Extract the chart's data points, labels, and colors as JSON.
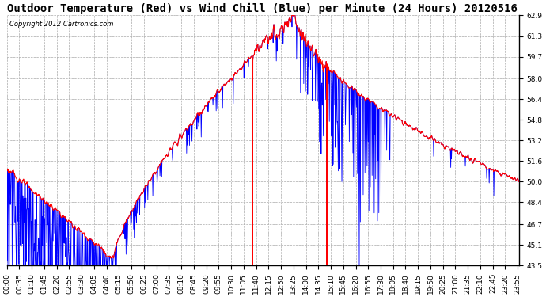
{
  "title": "Outdoor Temperature (Red) vs Wind Chill (Blue) per Minute (24 Hours) 20120516",
  "copyright_text": "Copyright 2012 Cartronics.com",
  "yticks": [
    43.5,
    45.1,
    46.7,
    48.4,
    50.0,
    51.6,
    53.2,
    54.8,
    56.4,
    58.0,
    59.7,
    61.3,
    62.9
  ],
  "ymin": 43.5,
  "ymax": 62.9,
  "background_color": "#ffffff",
  "plot_bg_color": "#ffffff",
  "grid_color": "#aaaaaa",
  "red_color": "#ff0000",
  "blue_color": "#0000ff",
  "title_fontsize": 10,
  "tick_fontsize": 6.5,
  "xtick_labels": [
    "00:00",
    "00:35",
    "01:10",
    "01:45",
    "02:20",
    "02:55",
    "03:30",
    "04:05",
    "04:40",
    "05:15",
    "05:50",
    "06:25",
    "07:00",
    "07:35",
    "08:10",
    "08:45",
    "09:20",
    "09:55",
    "10:30",
    "11:05",
    "11:40",
    "12:15",
    "12:50",
    "13:25",
    "14:00",
    "14:35",
    "15:10",
    "15:45",
    "16:20",
    "16:55",
    "17:30",
    "18:05",
    "18:40",
    "19:15",
    "19:50",
    "20:25",
    "21:00",
    "21:35",
    "22:10",
    "22:45",
    "23:20",
    "23:55"
  ]
}
